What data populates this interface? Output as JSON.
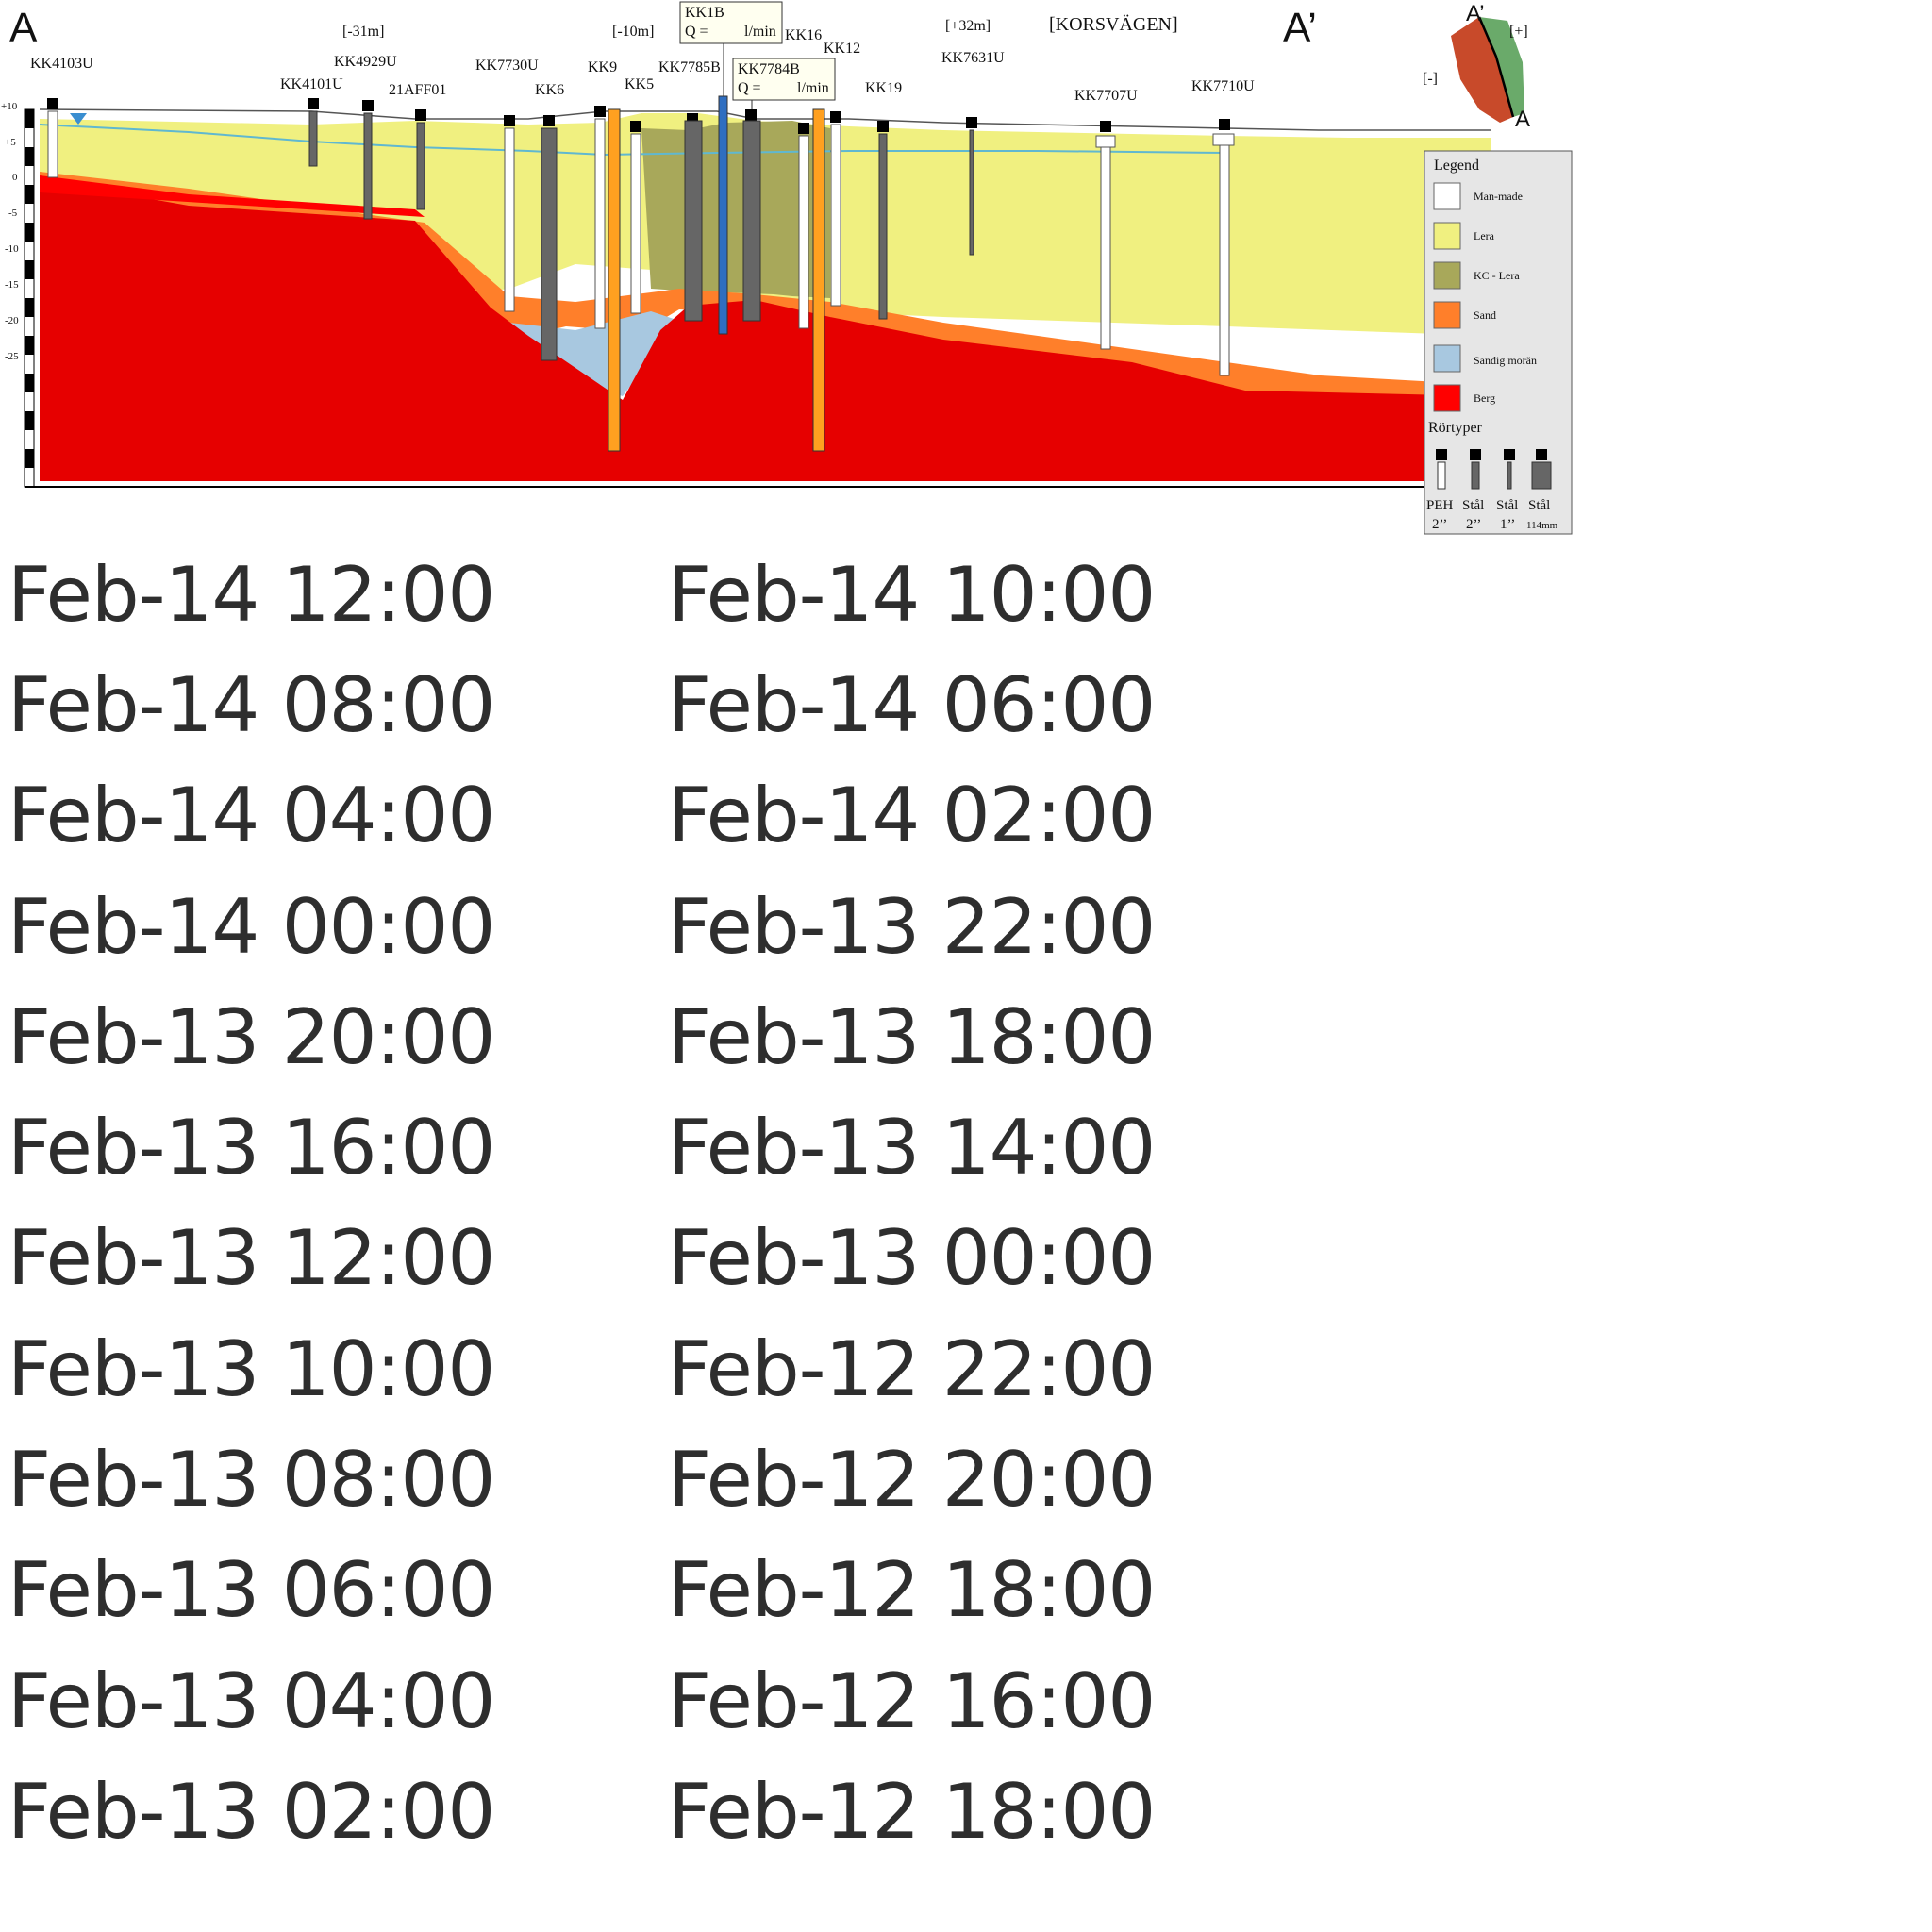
{
  "section": {
    "end_left": "A",
    "end_right": "A’",
    "offsets": [
      {
        "text": "[-31m]",
        "color": "#e00000"
      },
      {
        "text": "[-10m]",
        "color": "#e00000"
      },
      {
        "text": "[+32m]",
        "color": "#2e8b3a"
      }
    ],
    "street_label": "[KORSVÄGEN]",
    "wells": [
      "KK4103U",
      "KK4101U",
      "KK4929U",
      "21AFF01",
      "KK7730U",
      "KK6",
      "KK9",
      "KK5",
      "KK7785B",
      "KK16",
      "KK12",
      "KK19",
      "KK7631U",
      "KK7707U",
      "KK7710U"
    ],
    "callouts": [
      {
        "title": "KK1B",
        "q_label": "Q =",
        "unit": "l/min"
      },
      {
        "title": "KK7784B",
        "q_label": "Q =",
        "unit": "l/min"
      }
    ],
    "elevation_ticks": [
      "+10",
      "+5",
      "0",
      "-5",
      "-10",
      "-15",
      "-20",
      "-25"
    ],
    "minimap": {
      "top_label": "A’",
      "bottom_label": "A",
      "plus_label": "[+]",
      "minus_label": "[-]",
      "plus_color": "#2e8b3a",
      "minus_color": "#e00000"
    },
    "legend": {
      "title": "Legend",
      "items": [
        {
          "label": "Man-made",
          "color": "#ffffff"
        },
        {
          "label": "Lera",
          "color": "#f0f080"
        },
        {
          "label": "KC - Lera",
          "color": "#a8a85a"
        },
        {
          "label": "Sand",
          "color": "#ff7f2a"
        },
        {
          "label": "Sandig morän",
          "color": "#a8c8e0"
        },
        {
          "label": "Berg",
          "color": "#ff0000"
        }
      ],
      "pipe_title": "Rörtyper",
      "pipes": [
        {
          "name": "PEH",
          "size": "2’’"
        },
        {
          "name": "Stål",
          "size": "2’’"
        },
        {
          "name": "Stål",
          "size": "1’’"
        },
        {
          "name": "Stål",
          "size": "114mm"
        }
      ]
    }
  },
  "timestamps": [
    "Feb-14 12:00",
    "Feb-14 10:00",
    "Feb-14 08:00",
    "Feb-14 06:00",
    "Feb-14 04:00",
    "Feb-14 02:00",
    "Feb-14 00:00",
    "Feb-13 22:00",
    "Feb-13 20:00",
    "Feb-13 18:00",
    "Feb-13 16:00",
    "Feb-13 14:00",
    "Feb-13 12:00",
    "Feb-13 00:00",
    "Feb-13 10:00",
    "Feb-12 22:00",
    "Feb-13 08:00",
    "Feb-12 20:00",
    "Feb-13 06:00",
    "Feb-12 18:00",
    "Feb-13 04:00",
    "Feb-12 16:00",
    "Feb-13 02:00",
    "Feb-12 18:00"
  ]
}
